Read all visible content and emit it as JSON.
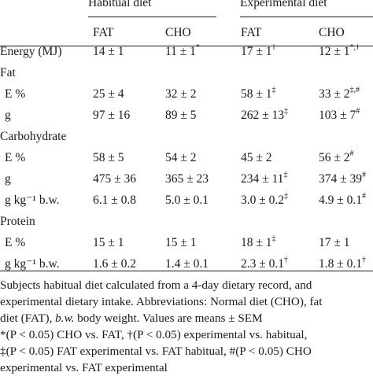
{
  "header": {
    "group1": "Habitual diet",
    "group2": "Experimental diet",
    "sub": [
      "FAT",
      "CHO",
      "FAT",
      "CHO"
    ]
  },
  "rows": [
    {
      "label": "Energy (MJ)",
      "cells": [
        {
          "v": "14 ± 1",
          "s": ""
        },
        {
          "v": "11 ± 1",
          "s": "*"
        },
        {
          "v": "17 ± 1",
          "s": "†"
        },
        {
          "v": "12 ± 1",
          "s": "*,†"
        }
      ]
    },
    {
      "label": "Fat",
      "section": true
    },
    {
      "label": "E %",
      "indent": true,
      "cells": [
        {
          "v": "25 ± 4",
          "s": ""
        },
        {
          "v": "32 ± 2",
          "s": ""
        },
        {
          "v": "58 ± 1",
          "s": "‡"
        },
        {
          "v": "33 ± 2",
          "s": "‡,#"
        }
      ]
    },
    {
      "label": "g",
      "indent": true,
      "cells": [
        {
          "v": "97 ± 16",
          "s": ""
        },
        {
          "v": "89 ± 5",
          "s": ""
        },
        {
          "v": "262 ± 13",
          "s": "‡"
        },
        {
          "v": "103 ± 7",
          "s": "#"
        }
      ]
    },
    {
      "label": "Carbohydrate",
      "section": true
    },
    {
      "label": "E %",
      "indent": true,
      "cells": [
        {
          "v": "58 ± 5",
          "s": ""
        },
        {
          "v": "54 ± 2",
          "s": ""
        },
        {
          "v": "45 ± 2",
          "s": ""
        },
        {
          "v": "56 ± 2",
          "s": "#"
        }
      ]
    },
    {
      "label": "g",
      "indent": true,
      "cells": [
        {
          "v": "475 ± 36",
          "s": ""
        },
        {
          "v": "365 ± 23",
          "s": ""
        },
        {
          "v": "234 ± 11",
          "s": "‡"
        },
        {
          "v": "374 ± 39",
          "s": "#"
        }
      ]
    },
    {
      "label": "g kg⁻¹ b.w.",
      "indent": true,
      "cells": [
        {
          "v": "6.1 ± 0.8",
          "s": ""
        },
        {
          "v": "5.0 ± 0.1",
          "s": ""
        },
        {
          "v": "3.0 ± 0.2",
          "s": "‡"
        },
        {
          "v": "4.9 ± 0.1",
          "s": "#"
        }
      ]
    },
    {
      "label": "Protein",
      "section": true
    },
    {
      "label": "E %",
      "indent": true,
      "cells": [
        {
          "v": "15 ± 1",
          "s": ""
        },
        {
          "v": "15 ± 1",
          "s": ""
        },
        {
          "v": "18 ± 1",
          "s": "‡"
        },
        {
          "v": "17 ± 1",
          "s": ""
        }
      ]
    },
    {
      "label": "g kg⁻¹ b.w.",
      "indent": true,
      "cells": [
        {
          "v": "1.6 ± 0.2",
          "s": ""
        },
        {
          "v": "1.4 ± 0.1",
          "s": ""
        },
        {
          "v": "2.3 ± 0.1",
          "s": "†"
        },
        {
          "v": "1.8 ± 0.1",
          "s": "†"
        }
      ]
    }
  ],
  "notes": {
    "line1": "Subjects habitual diet calculated from a 4-day dietary record, and",
    "line2": "experimental dietary intake. Abbreviations: Normal diet (CHO), fat",
    "line3a": "diet (FAT), ",
    "line3b": "b.w.",
    "line3c": " body weight. Values are means ± SEM",
    "fn1": "*(P < 0.05) CHO vs. FAT, †(P < 0.05) experimental vs. habitual,",
    "fn2": "‡(P < 0.05) FAT experimental vs. FAT habitual, #(P < 0.05) CHO",
    "fn3": "experimental vs. FAT experimental"
  }
}
